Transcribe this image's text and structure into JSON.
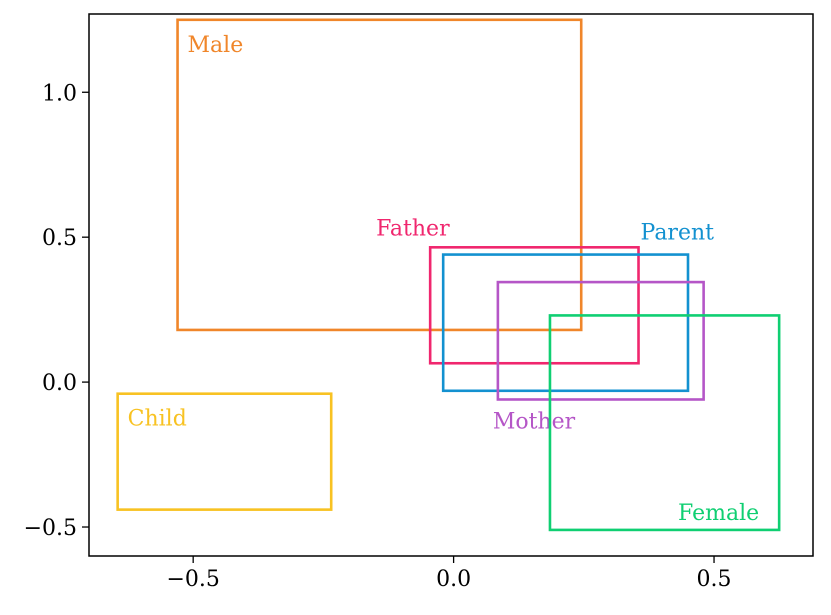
{
  "chart_data": {
    "type": "box-embedding",
    "title": "",
    "xlabel": "",
    "ylabel": "",
    "xlim": [
      -0.7,
      0.69
    ],
    "ylim": [
      -0.6,
      1.27
    ],
    "grid": false,
    "x_ticks": [
      {
        "value": -0.5,
        "label": "−0.5"
      },
      {
        "value": 0.0,
        "label": "0.0"
      },
      {
        "value": 0.5,
        "label": "0.5"
      }
    ],
    "y_ticks": [
      {
        "value": -0.5,
        "label": "−0.5"
      },
      {
        "value": 0.0,
        "label": "0.0"
      },
      {
        "value": 0.5,
        "label": "0.5"
      },
      {
        "value": 1.0,
        "label": "1.0"
      }
    ],
    "boxes": [
      {
        "label": "Male",
        "xmin": -0.53,
        "xmax": 0.245,
        "ymin": 0.18,
        "ymax": 1.25,
        "color": "#f0862a",
        "label_anchor": "top-left"
      },
      {
        "label": "Father",
        "xmin": -0.045,
        "xmax": 0.355,
        "ymin": 0.065,
        "ymax": 0.465,
        "color": "#f0266e",
        "label_anchor": "above-left"
      },
      {
        "label": "Parent",
        "xmin": -0.02,
        "xmax": 0.45,
        "ymin": -0.03,
        "ymax": 0.44,
        "color": "#1391d0",
        "label_anchor": "above-right"
      },
      {
        "label": "Mother",
        "xmin": 0.085,
        "xmax": 0.48,
        "ymin": -0.06,
        "ymax": 0.345,
        "color": "#b556c7",
        "label_anchor": "below-left"
      },
      {
        "label": "Female",
        "xmin": 0.185,
        "xmax": 0.625,
        "ymin": -0.51,
        "ymax": 0.23,
        "color": "#0fcf72",
        "label_anchor": "bottom-right"
      },
      {
        "label": "Child",
        "xmin": -0.645,
        "xmax": -0.235,
        "ymin": -0.44,
        "ymax": -0.04,
        "color": "#f8c222",
        "label_anchor": "top-left"
      }
    ]
  }
}
